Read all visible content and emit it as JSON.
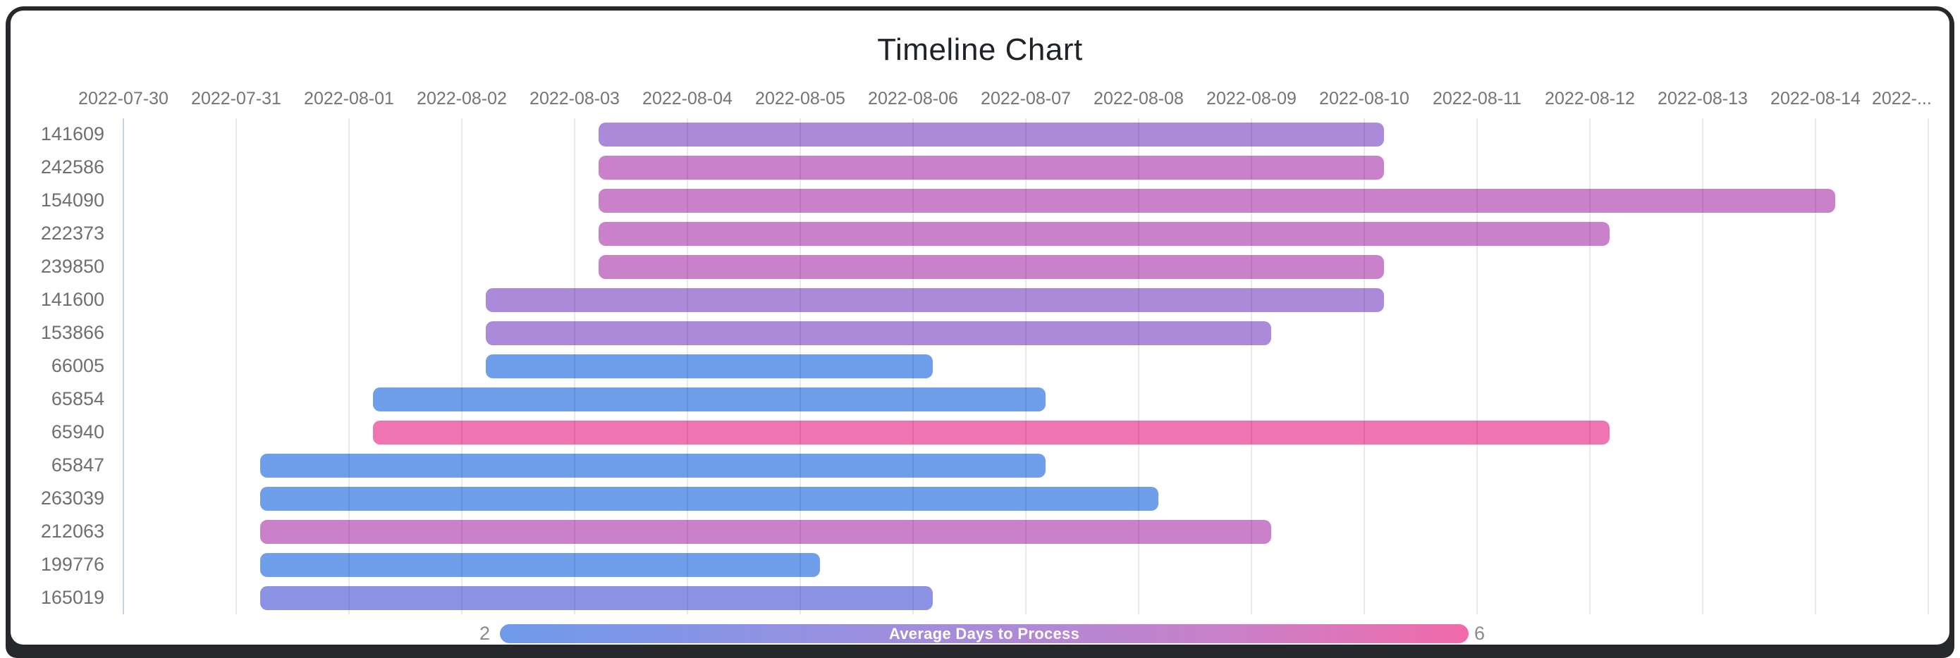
{
  "window": {
    "frame_color": "#26282b",
    "background": "#ffffff"
  },
  "chart_data": {
    "type": "bar",
    "variant": "timeline-gantt",
    "title": "Timeline Chart",
    "x_start_date": "2022-07-30",
    "x_tick_interval_days": 1,
    "x_tick_labels": [
      "2022-07-30",
      "2022-07-31",
      "2022-08-01",
      "2022-08-02",
      "2022-08-03",
      "2022-08-04",
      "2022-08-05",
      "2022-08-06",
      "2022-08-07",
      "2022-08-08",
      "2022-08-09",
      "2022-08-10",
      "2022-08-11",
      "2022-08-12",
      "2022-08-13",
      "2022-08-14",
      "2022-..."
    ],
    "grid": {
      "enabled": true,
      "first_line_color": "#c5d1e5",
      "line_color": "#e3e3e3"
    },
    "text_colors": {
      "title": "#1f2328",
      "axis": "#757575"
    },
    "rows": [
      {
        "label": "141609",
        "start": "2022-08-03",
        "end": "2022-08-10",
        "avg_days": 4,
        "color": "#aa8ad9"
      },
      {
        "label": "242586",
        "start": "2022-08-03",
        "end": "2022-08-10",
        "avg_days": 5,
        "color": "#c981c9"
      },
      {
        "label": "154090",
        "start": "2022-08-03",
        "end": "2022-08-14",
        "avg_days": 5,
        "color": "#c981c9"
      },
      {
        "label": "222373",
        "start": "2022-08-03",
        "end": "2022-08-12",
        "avg_days": 5,
        "color": "#c981c9"
      },
      {
        "label": "239850",
        "start": "2022-08-03",
        "end": "2022-08-10",
        "avg_days": 5,
        "color": "#c981c9"
      },
      {
        "label": "141600",
        "start": "2022-08-02",
        "end": "2022-08-10",
        "avg_days": 4,
        "color": "#aa8ad9"
      },
      {
        "label": "153866",
        "start": "2022-08-02",
        "end": "2022-08-09",
        "avg_days": 4,
        "color": "#aa8ad9"
      },
      {
        "label": "66005",
        "start": "2022-08-02",
        "end": "2022-08-06",
        "avg_days": 2,
        "color": "#6f9eea"
      },
      {
        "label": "65854",
        "start": "2022-08-01",
        "end": "2022-08-07",
        "avg_days": 2,
        "color": "#6f9eea"
      },
      {
        "label": "65940",
        "start": "2022-08-01",
        "end": "2022-08-12",
        "avg_days": 6,
        "color": "#ef74b2"
      },
      {
        "label": "65847",
        "start": "2022-07-31",
        "end": "2022-08-07",
        "avg_days": 2,
        "color": "#6f9eea"
      },
      {
        "label": "263039",
        "start": "2022-07-31",
        "end": "2022-08-08",
        "avg_days": 2,
        "color": "#6f9eea"
      },
      {
        "label": "212063",
        "start": "2022-07-31",
        "end": "2022-08-09",
        "avg_days": 5,
        "color": "#c981c9"
      },
      {
        "label": "199776",
        "start": "2022-07-31",
        "end": "2022-08-05",
        "avg_days": 2,
        "color": "#6f9eea"
      },
      {
        "label": "165019",
        "start": "2022-07-31",
        "end": "2022-08-06",
        "avg_days": 3,
        "color": "#8d93e4"
      }
    ],
    "legend": {
      "label": "Average Days to Process",
      "min_label": "2",
      "max_label": "6",
      "gradient": [
        "#6e9aea",
        "#8d93e4",
        "#aa8ad9",
        "#c981c9",
        "#f16aa9"
      ]
    }
  }
}
